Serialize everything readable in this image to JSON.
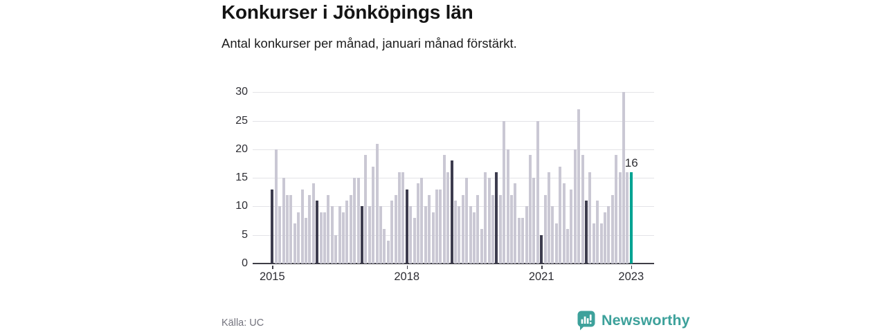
{
  "header": {
    "title": "Konkurser i Jönköpings län",
    "subtitle": "Antal konkurser per månad, januari månad förstärkt."
  },
  "footer": {
    "source": "Källa: UC",
    "brand": "Newsworthy"
  },
  "icons": {
    "logo": "newsworthy-speech-bubble-bar-chart-icon"
  },
  "chart_data": {
    "type": "bar",
    "title": "Konkurser i Jönköpings län",
    "subtitle": "Antal konkurser per månad, januari månad förstärkt.",
    "frequency": "monthly",
    "start": "2015-01",
    "end": "2023-01",
    "emphasis": "january bars are dark, latest bar is teal",
    "values_by_year": {
      "2015": [
        13,
        20,
        10,
        15,
        12,
        12,
        7,
        9,
        13,
        8,
        12,
        14
      ],
      "2016": [
        11,
        9,
        9,
        12,
        10,
        5,
        10,
        9,
        11,
        12,
        15,
        15
      ],
      "2017": [
        10,
        19,
        10,
        17,
        21,
        10,
        6,
        4,
        11,
        12,
        16,
        16
      ],
      "2018": [
        13,
        10,
        8,
        14,
        15,
        10,
        12,
        9,
        13,
        13,
        19,
        16
      ],
      "2019": [
        18,
        11,
        10,
        12,
        15,
        10,
        9,
        12,
        6,
        16,
        15,
        12
      ],
      "2020": [
        16,
        12,
        25,
        20,
        12,
        14,
        8,
        8,
        10,
        19,
        15,
        25
      ],
      "2021": [
        5,
        12,
        16,
        10,
        7,
        17,
        14,
        6,
        13,
        20,
        27,
        19
      ],
      "2022": [
        11,
        16,
        7,
        11,
        7,
        9,
        10,
        12,
        19,
        16,
        30,
        16
      ],
      "2023": [
        16
      ]
    },
    "highlight": {
      "date": "2023-01",
      "value": 16,
      "label": "16"
    },
    "y_ticks": [
      0,
      5,
      10,
      15,
      20,
      25,
      30
    ],
    "x_ticks": [
      "2015",
      "2018",
      "2021",
      "2023"
    ],
    "ylim": [
      0,
      30
    ],
    "grid": true,
    "legend": false,
    "colors": {
      "bar": "#cac8d4",
      "january": "#3d3c4e",
      "current": "#00a392",
      "gridline": "#e3e3e7",
      "axis": "#3f3e46"
    }
  }
}
